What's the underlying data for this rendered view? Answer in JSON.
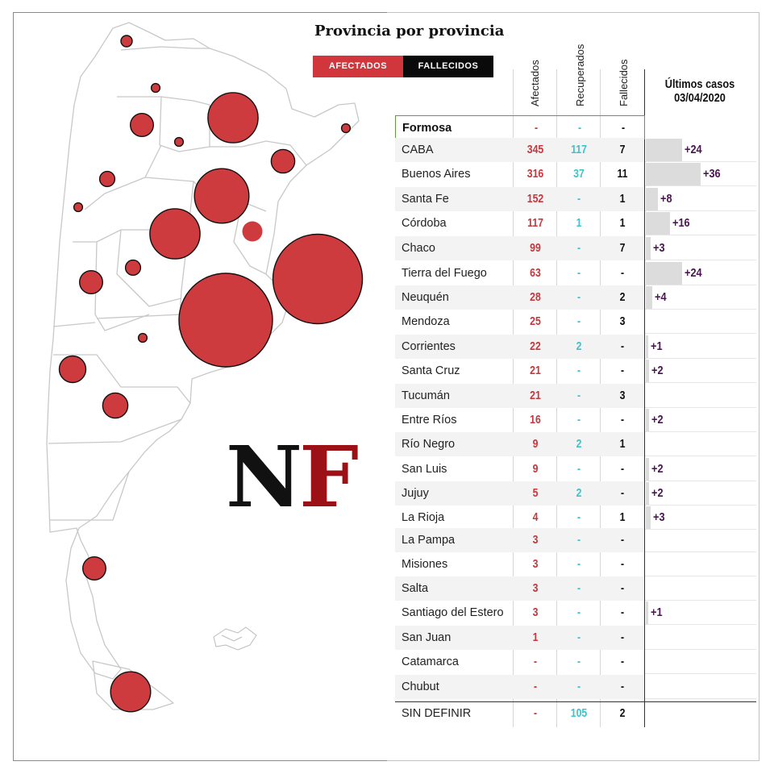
{
  "title": "Provincia por provincia",
  "toggles": {
    "afectados": "AFECTADOS",
    "fallecidos": "FALLECIDOS"
  },
  "columns": {
    "afectados": "Afectados",
    "recuperados": "Recuperados",
    "fallecidos": "Fallecidos"
  },
  "recent": {
    "title": "Últimos casos",
    "date": "03/04/2020"
  },
  "logo": {
    "n": "N",
    "f": "F"
  },
  "colors": {
    "afectados": "#d0363c",
    "recuperados": "#3ec2cc",
    "fallecidos": "#111111",
    "increment": "#4b1452",
    "bubble": "#cd3b3f"
  },
  "chart_data": {
    "type": "table",
    "title": "Provincia por provincia",
    "columns": [
      "Afectados",
      "Recuperados",
      "Fallecidos",
      "Últimos casos 03/04/2020"
    ],
    "rows": [
      {
        "province": "Formosa",
        "afectados": "-",
        "recuperados": "-",
        "fallecidos": "-",
        "nuevos": null
      },
      {
        "province": "CABA",
        "afectados": "345",
        "recuperados": "117",
        "fallecidos": "7",
        "nuevos": 24
      },
      {
        "province": "Buenos Aires",
        "afectados": "316",
        "recuperados": "37",
        "fallecidos": "11",
        "nuevos": 36
      },
      {
        "province": "Santa Fe",
        "afectados": "152",
        "recuperados": "-",
        "fallecidos": "1",
        "nuevos": 8
      },
      {
        "province": "Córdoba",
        "afectados": "117",
        "recuperados": "1",
        "fallecidos": "1",
        "nuevos": 16
      },
      {
        "province": "Chaco",
        "afectados": "99",
        "recuperados": "-",
        "fallecidos": "7",
        "nuevos": 3
      },
      {
        "province": "Tierra del Fuego",
        "afectados": "63",
        "recuperados": "-",
        "fallecidos": "-",
        "nuevos": 24
      },
      {
        "province": "Neuquén",
        "afectados": "28",
        "recuperados": "-",
        "fallecidos": "2",
        "nuevos": 4
      },
      {
        "province": "Mendoza",
        "afectados": "25",
        "recuperados": "-",
        "fallecidos": "3",
        "nuevos": null
      },
      {
        "province": "Corrientes",
        "afectados": "22",
        "recuperados": "2",
        "fallecidos": "-",
        "nuevos": 1
      },
      {
        "province": "Santa Cruz",
        "afectados": "21",
        "recuperados": "-",
        "fallecidos": "-",
        "nuevos": 2
      },
      {
        "province": "Tucumán",
        "afectados": "21",
        "recuperados": "-",
        "fallecidos": "3",
        "nuevos": null
      },
      {
        "province": "Entre Ríos",
        "afectados": "16",
        "recuperados": "-",
        "fallecidos": "-",
        "nuevos": 2
      },
      {
        "province": "Río Negro",
        "afectados": "9",
        "recuperados": "2",
        "fallecidos": "1",
        "nuevos": null
      },
      {
        "province": "San Luis",
        "afectados": "9",
        "recuperados": "-",
        "fallecidos": "-",
        "nuevos": 2
      },
      {
        "province": "Jujuy",
        "afectados": "5",
        "recuperados": "2",
        "fallecidos": "-",
        "nuevos": 2
      },
      {
        "province": "La Rioja",
        "afectados": "4",
        "recuperados": "-",
        "fallecidos": "1",
        "nuevos": 3
      },
      {
        "province": "La Pampa",
        "afectados": "3",
        "recuperados": "-",
        "fallecidos": "-",
        "nuevos": null
      },
      {
        "province": "Misiones",
        "afectados": "3",
        "recuperados": "-",
        "fallecidos": "-",
        "nuevos": null
      },
      {
        "province": "Salta",
        "afectados": "3",
        "recuperados": "-",
        "fallecidos": "-",
        "nuevos": null
      },
      {
        "province": "Santiago del Estero",
        "afectados": "3",
        "recuperados": "-",
        "fallecidos": "-",
        "nuevos": 1
      },
      {
        "province": "San Juan",
        "afectados": "1",
        "recuperados": "-",
        "fallecidos": "-",
        "nuevos": null
      },
      {
        "province": "Catamarca",
        "afectados": "-",
        "recuperados": "-",
        "fallecidos": "-",
        "nuevos": null
      },
      {
        "province": "Chubut",
        "afectados": "-",
        "recuperados": "-",
        "fallecidos": "-",
        "nuevos": null
      },
      {
        "province": "SIN DEFINIR",
        "afectados": "-",
        "recuperados": "105",
        "fallecidos": "2",
        "nuevos": null
      }
    ],
    "map_bubbles": [
      {
        "province": "Jujuy",
        "value": 5
      },
      {
        "province": "Salta",
        "value": 3
      },
      {
        "province": "Formosa",
        "value": 0
      },
      {
        "province": "Misiones",
        "value": 3
      },
      {
        "province": "Tucumán",
        "value": 21
      },
      {
        "province": "Santiago del Estero",
        "value": 3
      },
      {
        "province": "Chaco",
        "value": 99
      },
      {
        "province": "Catamarca",
        "value": 0
      },
      {
        "province": "Corrientes",
        "value": 22
      },
      {
        "province": "La Rioja",
        "value": 4
      },
      {
        "province": "Santa Fe",
        "value": 152
      },
      {
        "province": "Córdoba",
        "value": 117
      },
      {
        "province": "Entre Ríos",
        "value": 16
      },
      {
        "province": "San Juan",
        "value": 1
      },
      {
        "province": "San Luis",
        "value": 9
      },
      {
        "province": "Mendoza",
        "value": 25
      },
      {
        "province": "CABA",
        "value": 345
      },
      {
        "province": "Buenos Aires",
        "value": 316
      },
      {
        "province": "La Pampa",
        "value": 3
      },
      {
        "province": "Neuquén",
        "value": 28
      },
      {
        "province": "Río Negro",
        "value": 9
      },
      {
        "province": "Chubut",
        "value": 0
      },
      {
        "province": "Santa Cruz",
        "value": 21
      },
      {
        "province": "Tierra del Fuego",
        "value": 63
      }
    ]
  }
}
